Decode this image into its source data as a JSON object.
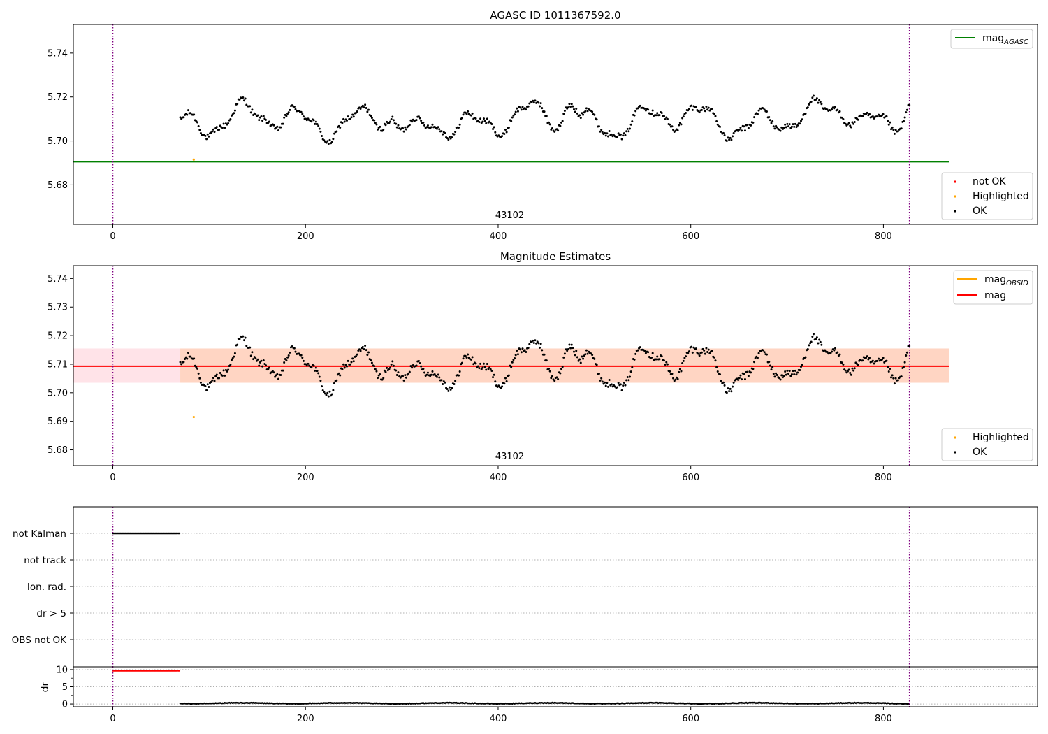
{
  "figure": {
    "title": "AGASC ID 1011367592.0",
    "x_ticks": [
      "0",
      "200",
      "400",
      "600",
      "800"
    ],
    "x_tick_values": [
      0,
      200,
      400,
      600,
      800
    ],
    "xlim": [
      -41,
      960
    ],
    "colors": {
      "ok": "#000000",
      "not_ok": "#ff0000",
      "highlighted": "#ffa500",
      "mag_agasc": "#008000",
      "mag": "#ff0000",
      "mag_obsid": "#ffa500",
      "band": "#ffc0cb",
      "band_inner": "#ffcba4",
      "observation_boundary": "#800080"
    }
  },
  "chart_data": [
    {
      "type": "scatter",
      "panel": "top",
      "title": "AGASC ID 1011367592.0",
      "ylim": [
        5.662,
        5.753
      ],
      "y_ticks": [
        "5.68",
        "5.70",
        "5.72",
        "5.74"
      ],
      "y_tick_values": [
        5.68,
        5.7,
        5.72,
        5.74
      ],
      "obsid_label": "43102",
      "obsid_label_x": 412,
      "observation_boundaries": [
        0,
        827
      ],
      "mag_agasc": {
        "value": 5.6905,
        "x_range": [
          -41,
          868
        ]
      },
      "ok_series": {
        "x_range": [
          70,
          827
        ],
        "n_points": 640
      },
      "highlighted_points": [
        {
          "x": 84,
          "y": 5.6915
        }
      ],
      "legend_upper": {
        "placement": "top-right",
        "entries": [
          {
            "label": "mag",
            "sub": "AGASC",
            "kind": "line",
            "color": "#008000"
          }
        ]
      },
      "legend_lower": {
        "placement": "bottom-right",
        "entries": [
          {
            "label": "not OK",
            "kind": "marker",
            "color": "#ff0000"
          },
          {
            "label": "Highlighted",
            "kind": "marker",
            "color": "#ffa500"
          },
          {
            "label": "OK",
            "kind": "marker",
            "color": "#000000"
          }
        ]
      }
    },
    {
      "type": "scatter",
      "panel": "middle",
      "title": "Magnitude Estimates",
      "ylim": [
        5.6745,
        5.7445
      ],
      "y_ticks": [
        "5.68",
        "5.69",
        "5.70",
        "5.71",
        "5.72",
        "5.73",
        "5.74"
      ],
      "y_tick_values": [
        5.68,
        5.69,
        5.7,
        5.71,
        5.72,
        5.73,
        5.74
      ],
      "obsid_label": "43102",
      "obsid_label_x": 412,
      "observation_boundaries": [
        0,
        827
      ],
      "mag": {
        "value": 5.7093,
        "x_range": [
          -41,
          868
        ]
      },
      "band_outer": {
        "low": 5.7035,
        "high": 5.7155,
        "x_range": [
          -41,
          868
        ]
      },
      "band_inner": {
        "low": 5.7035,
        "high": 5.7155,
        "x_range": [
          70,
          868
        ]
      },
      "ok_series": {
        "x_range": [
          70,
          827
        ],
        "n_points": 640
      },
      "highlighted_points": [
        {
          "x": 84,
          "y": 5.6915
        }
      ],
      "legend_upper": {
        "placement": "top-right",
        "entries": [
          {
            "label": "mag",
            "sub": "OBSID",
            "kind": "line",
            "color": "#ffa500"
          },
          {
            "label": "mag",
            "kind": "line",
            "color": "#ff0000"
          }
        ]
      },
      "legend_lower": {
        "placement": "bottom-right",
        "entries": [
          {
            "label": "Highlighted",
            "kind": "marker",
            "color": "#ffa500"
          },
          {
            "label": "OK",
            "kind": "marker",
            "color": "#000000"
          }
        ]
      }
    },
    {
      "type": "scatter",
      "panel": "flags",
      "categories": [
        "not Kalman",
        "not track",
        "Ion. rad.",
        "dr > 5",
        "OBS not OK"
      ],
      "grid": true,
      "flagged": [
        {
          "category": "not Kalman",
          "x_range": [
            0,
            69
          ],
          "n_points": 70
        }
      ],
      "observation_boundaries": [
        0,
        827
      ]
    },
    {
      "type": "scatter",
      "panel": "dr",
      "ylabel": "dr",
      "ylim": [
        -0.8,
        10.8
      ],
      "y_ticks": [
        "0",
        "5",
        "10"
      ],
      "y_tick_values": [
        0,
        5,
        10
      ],
      "grid": true,
      "not_ok_series": {
        "x_range": [
          0,
          69
        ],
        "value": 9.7,
        "n_points": 70
      },
      "ok_series": {
        "x_range": [
          70,
          827
        ],
        "value_range": [
          0.0,
          0.7
        ],
        "n_points": 640
      },
      "observation_boundaries": [
        0,
        827
      ]
    }
  ]
}
